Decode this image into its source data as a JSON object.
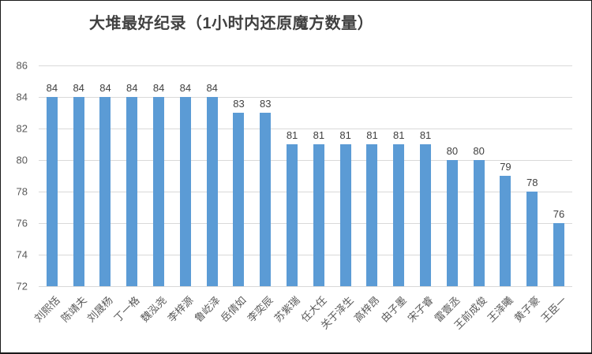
{
  "chart_data": {
    "type": "bar",
    "title": "大堆最好纪录（1小时内还原魔方数量）",
    "categories": [
      "刘熙恬",
      "陈靖夫",
      "刘晟杨",
      "丁一格",
      "魏泓尧",
      "李梓源",
      "鲁屹泽",
      "岳倩如",
      "李奕辰",
      "苏紫瑞",
      "任大任",
      "关于泽生",
      "高梓昂",
      "由子墨",
      "宋子睿",
      "雷壹丞",
      "王前成俊",
      "王泽曦",
      "黄子豪",
      "王臣一"
    ],
    "values": [
      84,
      84,
      84,
      84,
      84,
      84,
      84,
      83,
      83,
      81,
      81,
      81,
      81,
      81,
      81,
      80,
      80,
      79,
      78,
      76
    ],
    "xlabel": "",
    "ylabel": "",
    "ylim": [
      72,
      86
    ],
    "yticks": [
      72,
      74,
      76,
      78,
      80,
      82,
      84,
      86
    ],
    "grid": true,
    "legend": false,
    "data_labels": true
  },
  "colors": {
    "bar": "#5b9bd5",
    "gridline": "#d9d9d9",
    "axis_text": "#595959",
    "data_label_text": "#404040",
    "title_text": "#404040",
    "border": "#1a1a1a",
    "background": "#ffffff"
  }
}
